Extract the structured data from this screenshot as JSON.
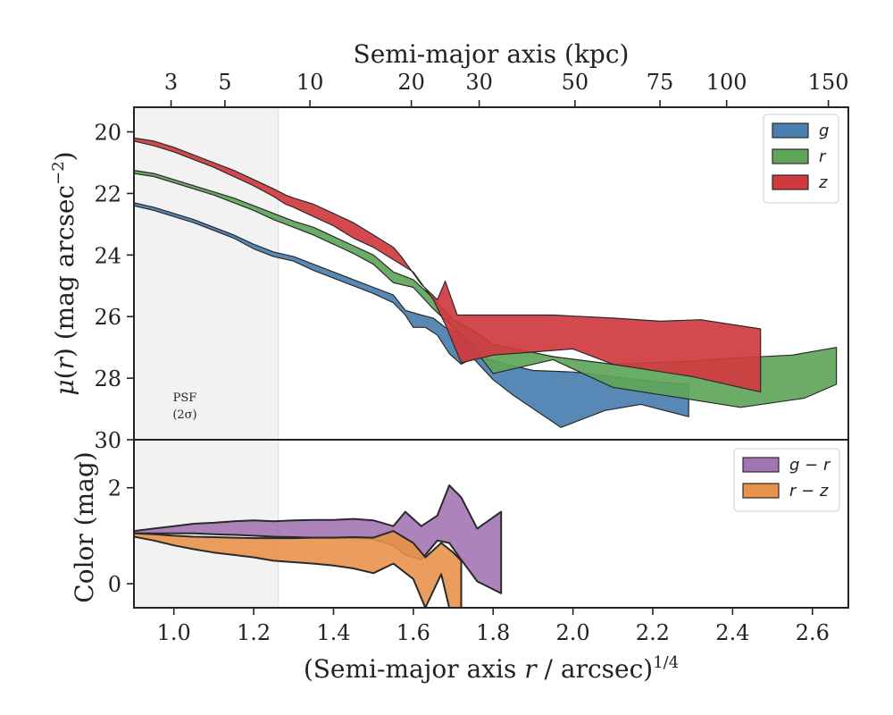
{
  "chart_data": [
    {
      "type": "area",
      "panel": "surface-brightness",
      "title": "Semi-major axis (kpc)",
      "xlabel": "(Semi-major axis r / arcsec)^1/4",
      "ylabel": "μ(r) (mag arcsec⁻²)",
      "xlim": [
        0.9,
        2.69
      ],
      "ylim": [
        30,
        19.2
      ],
      "y_inverted": true,
      "yticks": [
        20,
        22,
        24,
        26,
        28,
        30
      ],
      "top_axis_label": "Semi-major axis (kpc)",
      "top_ticks": [
        {
          "label": "3",
          "x": 0.993
        },
        {
          "label": "5",
          "x": 1.128
        },
        {
          "label": "10",
          "x": 1.341
        },
        {
          "label": "20",
          "x": 1.595
        },
        {
          "label": "30",
          "x": 1.765
        },
        {
          "label": "50",
          "x": 2.005
        },
        {
          "label": "75",
          "x": 2.218
        },
        {
          "label": "100",
          "x": 2.385
        },
        {
          "label": "150",
          "x": 2.64
        }
      ],
      "shaded_region": {
        "x": [
          0.9,
          1.262
        ],
        "label": "PSF",
        "sublabel": "(2σ)"
      },
      "legend_position": "top-right",
      "series": [
        {
          "name": "g",
          "color": "#4a7fb0",
          "upper": [
            [
              0.9,
              22.3
            ],
            [
              0.95,
              22.45
            ],
            [
              1.0,
              22.65
            ],
            [
              1.05,
              22.85
            ],
            [
              1.1,
              23.1
            ],
            [
              1.15,
              23.35
            ],
            [
              1.2,
              23.65
            ],
            [
              1.25,
              23.9
            ],
            [
              1.3,
              24.05
            ],
            [
              1.35,
              24.3
            ],
            [
              1.4,
              24.55
            ],
            [
              1.45,
              24.8
            ],
            [
              1.5,
              25.05
            ],
            [
              1.55,
              25.3
            ],
            [
              1.58,
              25.8
            ],
            [
              1.62,
              25.95
            ],
            [
              1.65,
              26.05
            ],
            [
              1.68,
              26.35
            ],
            [
              1.71,
              26.5
            ],
            [
              1.74,
              26.75
            ],
            [
              1.78,
              27.35
            ],
            [
              1.85,
              27.6
            ],
            [
              1.9,
              27.75
            ],
            [
              2.0,
              27.8
            ],
            [
              2.1,
              27.95
            ],
            [
              2.2,
              28.1
            ],
            [
              2.29,
              28.2
            ]
          ],
          "lower": [
            [
              0.9,
              22.4
            ],
            [
              0.95,
              22.55
            ],
            [
              1.0,
              22.75
            ],
            [
              1.05,
              22.95
            ],
            [
              1.1,
              23.2
            ],
            [
              1.15,
              23.45
            ],
            [
              1.2,
              23.8
            ],
            [
              1.25,
              24.05
            ],
            [
              1.3,
              24.2
            ],
            [
              1.35,
              24.5
            ],
            [
              1.4,
              24.75
            ],
            [
              1.45,
              25.0
            ],
            [
              1.5,
              25.25
            ],
            [
              1.55,
              25.55
            ],
            [
              1.58,
              25.95
            ],
            [
              1.6,
              26.35
            ],
            [
              1.63,
              26.35
            ],
            [
              1.66,
              26.6
            ],
            [
              1.69,
              27.2
            ],
            [
              1.72,
              27.55
            ],
            [
              1.75,
              27.35
            ],
            [
              1.8,
              28.05
            ],
            [
              1.85,
              28.55
            ],
            [
              1.97,
              29.6
            ],
            [
              2.08,
              29.05
            ],
            [
              2.17,
              28.85
            ],
            [
              2.29,
              29.25
            ]
          ]
        },
        {
          "name": "r",
          "color": "#5ea55a",
          "upper": [
            [
              0.9,
              21.25
            ],
            [
              0.95,
              21.35
            ],
            [
              1.0,
              21.55
            ],
            [
              1.05,
              21.75
            ],
            [
              1.1,
              21.95
            ],
            [
              1.15,
              22.15
            ],
            [
              1.2,
              22.4
            ],
            [
              1.25,
              22.65
            ],
            [
              1.3,
              22.9
            ],
            [
              1.35,
              23.1
            ],
            [
              1.4,
              23.4
            ],
            [
              1.45,
              23.7
            ],
            [
              1.5,
              24.0
            ],
            [
              1.55,
              24.55
            ],
            [
              1.6,
              24.8
            ],
            [
              1.65,
              25.4
            ],
            [
              1.7,
              26.1
            ],
            [
              1.75,
              26.45
            ],
            [
              1.8,
              26.9
            ],
            [
              1.95,
              27.3
            ],
            [
              2.1,
              27.55
            ],
            [
              2.3,
              27.45
            ],
            [
              2.4,
              27.35
            ],
            [
              2.55,
              27.25
            ],
            [
              2.66,
              27.0
            ]
          ],
          "lower": [
            [
              0.9,
              21.35
            ],
            [
              0.95,
              21.45
            ],
            [
              1.0,
              21.65
            ],
            [
              1.05,
              21.85
            ],
            [
              1.1,
              22.05
            ],
            [
              1.15,
              22.3
            ],
            [
              1.2,
              22.55
            ],
            [
              1.25,
              22.85
            ],
            [
              1.3,
              23.1
            ],
            [
              1.35,
              23.35
            ],
            [
              1.4,
              23.65
            ],
            [
              1.45,
              23.95
            ],
            [
              1.5,
              24.3
            ],
            [
              1.55,
              24.9
            ],
            [
              1.6,
              25.05
            ],
            [
              1.65,
              25.75
            ],
            [
              1.7,
              26.35
            ],
            [
              1.75,
              27.0
            ],
            [
              1.8,
              27.85
            ],
            [
              1.95,
              27.4
            ],
            [
              2.1,
              28.3
            ],
            [
              2.25,
              28.6
            ],
            [
              2.42,
              28.95
            ],
            [
              2.58,
              28.65
            ],
            [
              2.66,
              28.2
            ]
          ]
        },
        {
          "name": "z",
          "color": "#d0393e",
          "upper": [
            [
              0.9,
              20.2
            ],
            [
              0.95,
              20.3
            ],
            [
              1.0,
              20.5
            ],
            [
              1.05,
              20.75
            ],
            [
              1.1,
              21.0
            ],
            [
              1.15,
              21.25
            ],
            [
              1.2,
              21.55
            ],
            [
              1.25,
              21.85
            ],
            [
              1.28,
              22.05
            ],
            [
              1.3,
              22.15
            ],
            [
              1.35,
              22.35
            ],
            [
              1.4,
              22.65
            ],
            [
              1.45,
              22.95
            ],
            [
              1.5,
              23.35
            ],
            [
              1.55,
              23.75
            ],
            [
              1.57,
              24.05
            ],
            [
              1.62,
              24.95
            ],
            [
              1.66,
              25.45
            ],
            [
              1.68,
              24.85
            ],
            [
              1.71,
              25.95
            ],
            [
              1.8,
              25.95
            ],
            [
              1.95,
              25.95
            ],
            [
              2.1,
              26.05
            ],
            [
              2.22,
              26.15
            ],
            [
              2.32,
              26.1
            ],
            [
              2.47,
              26.4
            ]
          ],
          "lower": [
            [
              0.9,
              20.3
            ],
            [
              0.95,
              20.45
            ],
            [
              1.0,
              20.65
            ],
            [
              1.05,
              20.9
            ],
            [
              1.1,
              21.15
            ],
            [
              1.15,
              21.45
            ],
            [
              1.2,
              21.75
            ],
            [
              1.25,
              22.1
            ],
            [
              1.28,
              22.35
            ],
            [
              1.3,
              22.45
            ],
            [
              1.35,
              22.75
            ],
            [
              1.4,
              23.05
            ],
            [
              1.45,
              23.45
            ],
            [
              1.5,
              23.75
            ],
            [
              1.55,
              24.15
            ],
            [
              1.6,
              24.55
            ],
            [
              1.65,
              25.45
            ],
            [
              1.68,
              26.25
            ],
            [
              1.72,
              27.5
            ],
            [
              1.8,
              27.25
            ],
            [
              1.95,
              27.1
            ],
            [
              2.0,
              27.05
            ],
            [
              2.1,
              27.55
            ],
            [
              2.3,
              27.95
            ],
            [
              2.47,
              28.45
            ]
          ]
        }
      ]
    },
    {
      "type": "area",
      "panel": "color",
      "xlabel": "(Semi-major axis r / arcsec)^1/4",
      "ylabel": "Color (mag)",
      "xlim": [
        0.9,
        2.69
      ],
      "ylim": [
        -0.5,
        3.0
      ],
      "yticks": [
        0,
        2
      ],
      "xticks": [
        1.0,
        1.2,
        1.4,
        1.6,
        1.8,
        2.0,
        2.2,
        2.4,
        2.6
      ],
      "legend_position": "top-right",
      "series": [
        {
          "name": "g − r",
          "color": "#a375b2",
          "upper": [
            [
              0.9,
              1.1
            ],
            [
              0.95,
              1.15
            ],
            [
              1.0,
              1.2
            ],
            [
              1.05,
              1.25
            ],
            [
              1.1,
              1.27
            ],
            [
              1.15,
              1.3
            ],
            [
              1.2,
              1.32
            ],
            [
              1.25,
              1.3
            ],
            [
              1.3,
              1.32
            ],
            [
              1.35,
              1.33
            ],
            [
              1.4,
              1.33
            ],
            [
              1.45,
              1.35
            ],
            [
              1.5,
              1.32
            ],
            [
              1.55,
              1.2
            ],
            [
              1.58,
              1.5
            ],
            [
              1.62,
              1.2
            ],
            [
              1.66,
              1.42
            ],
            [
              1.69,
              2.05
            ],
            [
              1.72,
              1.8
            ],
            [
              1.76,
              1.15
            ],
            [
              1.82,
              1.5
            ]
          ],
          "lower": [
            [
              0.9,
              1.05
            ],
            [
              0.95,
              1.05
            ],
            [
              1.0,
              1.05
            ],
            [
              1.05,
              1.05
            ],
            [
              1.1,
              1.03
            ],
            [
              1.15,
              1.02
            ],
            [
              1.2,
              1.0
            ],
            [
              1.25,
              0.98
            ],
            [
              1.3,
              0.97
            ],
            [
              1.35,
              0.96
            ],
            [
              1.4,
              0.96
            ],
            [
              1.45,
              0.95
            ],
            [
              1.5,
              0.93
            ],
            [
              1.55,
              0.8
            ],
            [
              1.58,
              0.6
            ],
            [
              1.62,
              0.5
            ],
            [
              1.66,
              0.9
            ],
            [
              1.69,
              0.85
            ],
            [
              1.72,
              0.5
            ],
            [
              1.76,
              0.05
            ],
            [
              1.82,
              -0.2
            ]
          ]
        },
        {
          "name": "r − z",
          "color": "#e8924a",
          "upper": [
            [
              0.9,
              1.05
            ],
            [
              0.95,
              1.03
            ],
            [
              1.0,
              1.0
            ],
            [
              1.05,
              0.98
            ],
            [
              1.1,
              0.97
            ],
            [
              1.15,
              0.96
            ],
            [
              1.2,
              0.95
            ],
            [
              1.25,
              0.95
            ],
            [
              1.3,
              0.95
            ],
            [
              1.35,
              0.96
            ],
            [
              1.4,
              0.96
            ],
            [
              1.45,
              0.97
            ],
            [
              1.5,
              0.96
            ],
            [
              1.55,
              1.1
            ],
            [
              1.6,
              0.85
            ],
            [
              1.63,
              0.55
            ],
            [
              1.67,
              0.85
            ],
            [
              1.7,
              0.65
            ],
            [
              1.72,
              0.48
            ]
          ],
          "lower": [
            [
              0.9,
              0.98
            ],
            [
              0.95,
              0.9
            ],
            [
              1.0,
              0.8
            ],
            [
              1.05,
              0.72
            ],
            [
              1.1,
              0.65
            ],
            [
              1.15,
              0.6
            ],
            [
              1.2,
              0.55
            ],
            [
              1.25,
              0.48
            ],
            [
              1.3,
              0.45
            ],
            [
              1.35,
              0.42
            ],
            [
              1.4,
              0.38
            ],
            [
              1.45,
              0.32
            ],
            [
              1.5,
              0.22
            ],
            [
              1.55,
              0.42
            ],
            [
              1.6,
              0.1
            ],
            [
              1.63,
              -0.5
            ],
            [
              1.67,
              0.2
            ],
            [
              1.69,
              -0.5
            ],
            [
              1.72,
              -0.5
            ]
          ]
        }
      ]
    }
  ]
}
